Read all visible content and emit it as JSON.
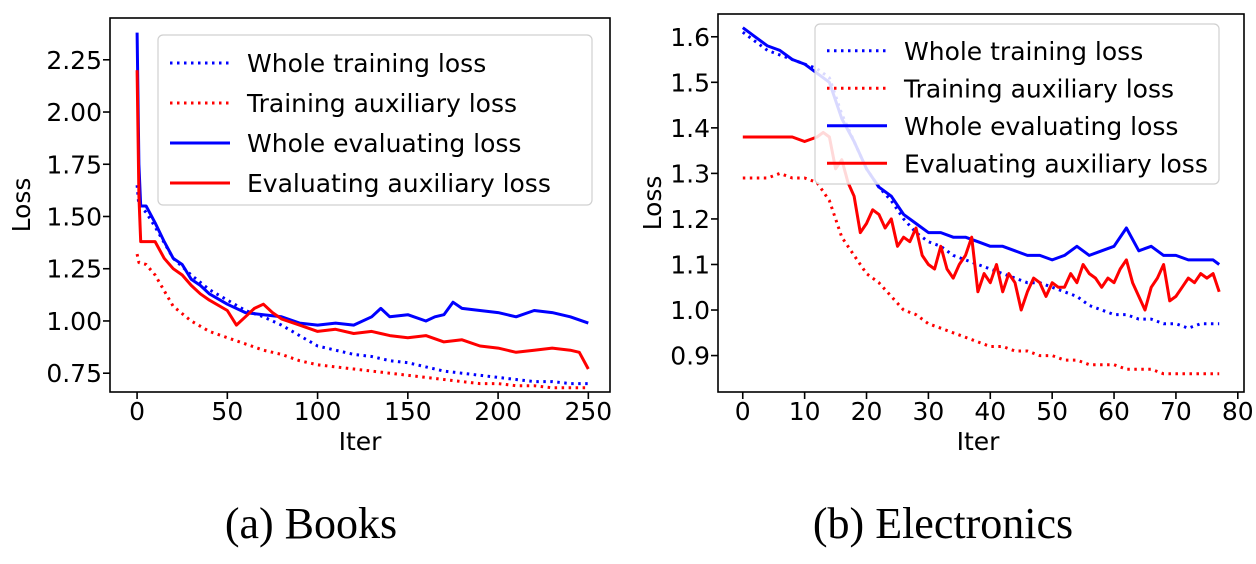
{
  "chart_data": [
    {
      "type": "line",
      "caption": "(a) Books",
      "xlabel": "Iter",
      "ylabel": "Loss",
      "xlim": [
        -15,
        262
      ],
      "ylim": [
        0.66,
        2.45
      ],
      "xticks": [
        0,
        50,
        100,
        150,
        200,
        250
      ],
      "yticks": [
        0.75,
        1.0,
        1.25,
        1.5,
        1.75,
        2.0,
        2.25
      ],
      "ytick_labels": [
        "0.75",
        "1.00",
        "1.25",
        "1.50",
        "1.75",
        "2.00",
        "2.25"
      ],
      "legend": "top-right",
      "series": [
        {
          "name": "Whole training loss",
          "color": "#0000ff",
          "style": "dotted",
          "x": [
            0,
            1,
            5,
            10,
            20,
            30,
            40,
            50,
            60,
            70,
            80,
            90,
            100,
            110,
            120,
            130,
            140,
            150,
            160,
            170,
            180,
            190,
            200,
            210,
            220,
            230,
            240,
            250
          ],
          "y": [
            1.65,
            1.55,
            1.52,
            1.45,
            1.3,
            1.22,
            1.15,
            1.1,
            1.05,
            1.02,
            0.98,
            0.93,
            0.88,
            0.86,
            0.84,
            0.83,
            0.81,
            0.8,
            0.78,
            0.76,
            0.75,
            0.74,
            0.73,
            0.72,
            0.71,
            0.71,
            0.7,
            0.7
          ]
        },
        {
          "name": "Training auxiliary loss",
          "color": "#ff0000",
          "style": "dotted",
          "x": [
            0,
            1,
            5,
            10,
            20,
            30,
            40,
            50,
            60,
            70,
            80,
            90,
            100,
            110,
            120,
            130,
            140,
            150,
            160,
            170,
            180,
            190,
            200,
            210,
            220,
            230,
            240,
            250
          ],
          "y": [
            1.32,
            1.28,
            1.27,
            1.22,
            1.07,
            1.0,
            0.95,
            0.92,
            0.89,
            0.86,
            0.84,
            0.81,
            0.79,
            0.78,
            0.77,
            0.76,
            0.75,
            0.74,
            0.73,
            0.72,
            0.71,
            0.7,
            0.7,
            0.69,
            0.69,
            0.68,
            0.68,
            0.68
          ]
        },
        {
          "name": "Whole evaluating loss",
          "color": "#0000ff",
          "style": "solid",
          "x": [
            0,
            1,
            2,
            5,
            10,
            15,
            20,
            25,
            30,
            35,
            40,
            50,
            60,
            70,
            80,
            90,
            100,
            110,
            120,
            130,
            135,
            140,
            150,
            160,
            165,
            170,
            175,
            180,
            190,
            200,
            210,
            220,
            230,
            240,
            250
          ],
          "y": [
            2.38,
            1.75,
            1.55,
            1.55,
            1.47,
            1.38,
            1.3,
            1.27,
            1.2,
            1.17,
            1.13,
            1.08,
            1.04,
            1.03,
            1.02,
            0.99,
            0.98,
            0.99,
            0.98,
            1.02,
            1.06,
            1.02,
            1.03,
            1.0,
            1.02,
            1.03,
            1.09,
            1.06,
            1.05,
            1.04,
            1.02,
            1.05,
            1.04,
            1.02,
            0.99
          ]
        },
        {
          "name": "Evaluating auxiliary loss",
          "color": "#ff0000",
          "style": "solid",
          "x": [
            0,
            1,
            2,
            5,
            10,
            15,
            20,
            25,
            30,
            35,
            40,
            50,
            55,
            60,
            65,
            70,
            75,
            80,
            90,
            100,
            110,
            120,
            130,
            140,
            150,
            160,
            170,
            180,
            190,
            200,
            210,
            220,
            230,
            240,
            245,
            250
          ],
          "y": [
            2.2,
            1.6,
            1.38,
            1.38,
            1.38,
            1.3,
            1.25,
            1.22,
            1.17,
            1.13,
            1.1,
            1.05,
            0.98,
            1.02,
            1.06,
            1.08,
            1.04,
            1.01,
            0.98,
            0.95,
            0.96,
            0.94,
            0.95,
            0.93,
            0.92,
            0.93,
            0.9,
            0.91,
            0.88,
            0.87,
            0.85,
            0.86,
            0.87,
            0.86,
            0.85,
            0.77
          ]
        }
      ]
    },
    {
      "type": "line",
      "caption": "(b) Electronics",
      "xlabel": "Iter",
      "ylabel": "Loss",
      "xlim": [
        -4,
        81
      ],
      "ylim": [
        0.82,
        1.65
      ],
      "xticks": [
        0,
        10,
        20,
        30,
        40,
        50,
        60,
        70,
        80
      ],
      "yticks": [
        0.9,
        1.0,
        1.1,
        1.2,
        1.3,
        1.4,
        1.5,
        1.6
      ],
      "ytick_labels": [
        "0.9",
        "1.0",
        "1.1",
        "1.2",
        "1.3",
        "1.4",
        "1.5",
        "1.6"
      ],
      "legend": "top-right",
      "series": [
        {
          "name": "Whole training loss",
          "color": "#0000ff",
          "style": "dotted",
          "x": [
            0,
            2,
            4,
            6,
            8,
            10,
            12,
            14,
            16,
            18,
            20,
            22,
            24,
            26,
            28,
            30,
            32,
            34,
            36,
            38,
            40,
            42,
            44,
            46,
            48,
            50,
            52,
            54,
            56,
            58,
            60,
            62,
            64,
            66,
            68,
            70,
            72,
            74,
            76,
            77
          ],
          "y": [
            1.61,
            1.59,
            1.57,
            1.56,
            1.55,
            1.54,
            1.53,
            1.51,
            1.43,
            1.37,
            1.31,
            1.27,
            1.24,
            1.2,
            1.17,
            1.15,
            1.14,
            1.12,
            1.11,
            1.1,
            1.09,
            1.08,
            1.07,
            1.06,
            1.06,
            1.05,
            1.04,
            1.03,
            1.01,
            1.0,
            0.99,
            0.99,
            0.98,
            0.98,
            0.97,
            0.97,
            0.96,
            0.97,
            0.97,
            0.97
          ]
        },
        {
          "name": "Training auxiliary loss",
          "color": "#ff0000",
          "style": "dotted",
          "x": [
            0,
            2,
            4,
            6,
            8,
            10,
            12,
            14,
            16,
            18,
            20,
            22,
            24,
            26,
            28,
            30,
            32,
            34,
            36,
            38,
            40,
            42,
            44,
            46,
            48,
            50,
            52,
            54,
            56,
            58,
            60,
            62,
            64,
            66,
            68,
            70,
            72,
            74,
            76,
            77
          ],
          "y": [
            1.29,
            1.29,
            1.29,
            1.3,
            1.29,
            1.29,
            1.28,
            1.24,
            1.16,
            1.12,
            1.08,
            1.06,
            1.03,
            1.0,
            0.99,
            0.97,
            0.96,
            0.95,
            0.94,
            0.93,
            0.92,
            0.92,
            0.91,
            0.91,
            0.9,
            0.9,
            0.89,
            0.89,
            0.88,
            0.88,
            0.88,
            0.87,
            0.87,
            0.87,
            0.86,
            0.86,
            0.86,
            0.86,
            0.86,
            0.86
          ]
        },
        {
          "name": "Whole evaluating loss",
          "color": "#0000ff",
          "style": "solid",
          "x": [
            0,
            1,
            2,
            4,
            6,
            8,
            10,
            12,
            14,
            16,
            18,
            20,
            22,
            24,
            26,
            28,
            30,
            32,
            34,
            36,
            38,
            40,
            42,
            44,
            46,
            48,
            50,
            52,
            54,
            56,
            58,
            60,
            62,
            64,
            66,
            68,
            70,
            72,
            74,
            76,
            77
          ],
          "y": [
            1.62,
            1.61,
            1.6,
            1.58,
            1.57,
            1.55,
            1.54,
            1.52,
            1.5,
            1.42,
            1.37,
            1.31,
            1.27,
            1.25,
            1.21,
            1.19,
            1.17,
            1.17,
            1.16,
            1.16,
            1.15,
            1.14,
            1.14,
            1.13,
            1.12,
            1.12,
            1.11,
            1.12,
            1.14,
            1.12,
            1.13,
            1.14,
            1.18,
            1.13,
            1.14,
            1.12,
            1.12,
            1.11,
            1.11,
            1.11,
            1.1
          ]
        },
        {
          "name": "Evaluating auxiliary loss",
          "color": "#ff0000",
          "style": "solid",
          "x": [
            0,
            2,
            4,
            6,
            8,
            10,
            12,
            13,
            14,
            15,
            16,
            17,
            18,
            19,
            20,
            21,
            22,
            23,
            24,
            25,
            26,
            27,
            28,
            29,
            30,
            31,
            32,
            33,
            34,
            35,
            36,
            37,
            38,
            39,
            40,
            41,
            42,
            43,
            44,
            45,
            46,
            47,
            48,
            49,
            50,
            51,
            52,
            53,
            54,
            55,
            56,
            57,
            58,
            59,
            60,
            61,
            62,
            63,
            64,
            65,
            66,
            67,
            68,
            69,
            70,
            71,
            72,
            73,
            74,
            75,
            76,
            77
          ],
          "y": [
            1.38,
            1.38,
            1.38,
            1.38,
            1.38,
            1.37,
            1.38,
            1.39,
            1.38,
            1.31,
            1.33,
            1.28,
            1.25,
            1.17,
            1.19,
            1.22,
            1.21,
            1.18,
            1.2,
            1.14,
            1.16,
            1.15,
            1.18,
            1.12,
            1.1,
            1.09,
            1.14,
            1.09,
            1.07,
            1.1,
            1.12,
            1.16,
            1.04,
            1.08,
            1.06,
            1.1,
            1.04,
            1.08,
            1.06,
            1.0,
            1.04,
            1.07,
            1.06,
            1.03,
            1.06,
            1.05,
            1.05,
            1.08,
            1.06,
            1.1,
            1.08,
            1.07,
            1.05,
            1.07,
            1.06,
            1.09,
            1.11,
            1.06,
            1.03,
            1.0,
            1.05,
            1.07,
            1.1,
            1.02,
            1.03,
            1.05,
            1.07,
            1.06,
            1.08,
            1.07,
            1.08,
            1.04
          ]
        }
      ]
    }
  ],
  "colors": {
    "blue": "#0000ff",
    "red": "#ff0000",
    "axis": "#000000"
  }
}
